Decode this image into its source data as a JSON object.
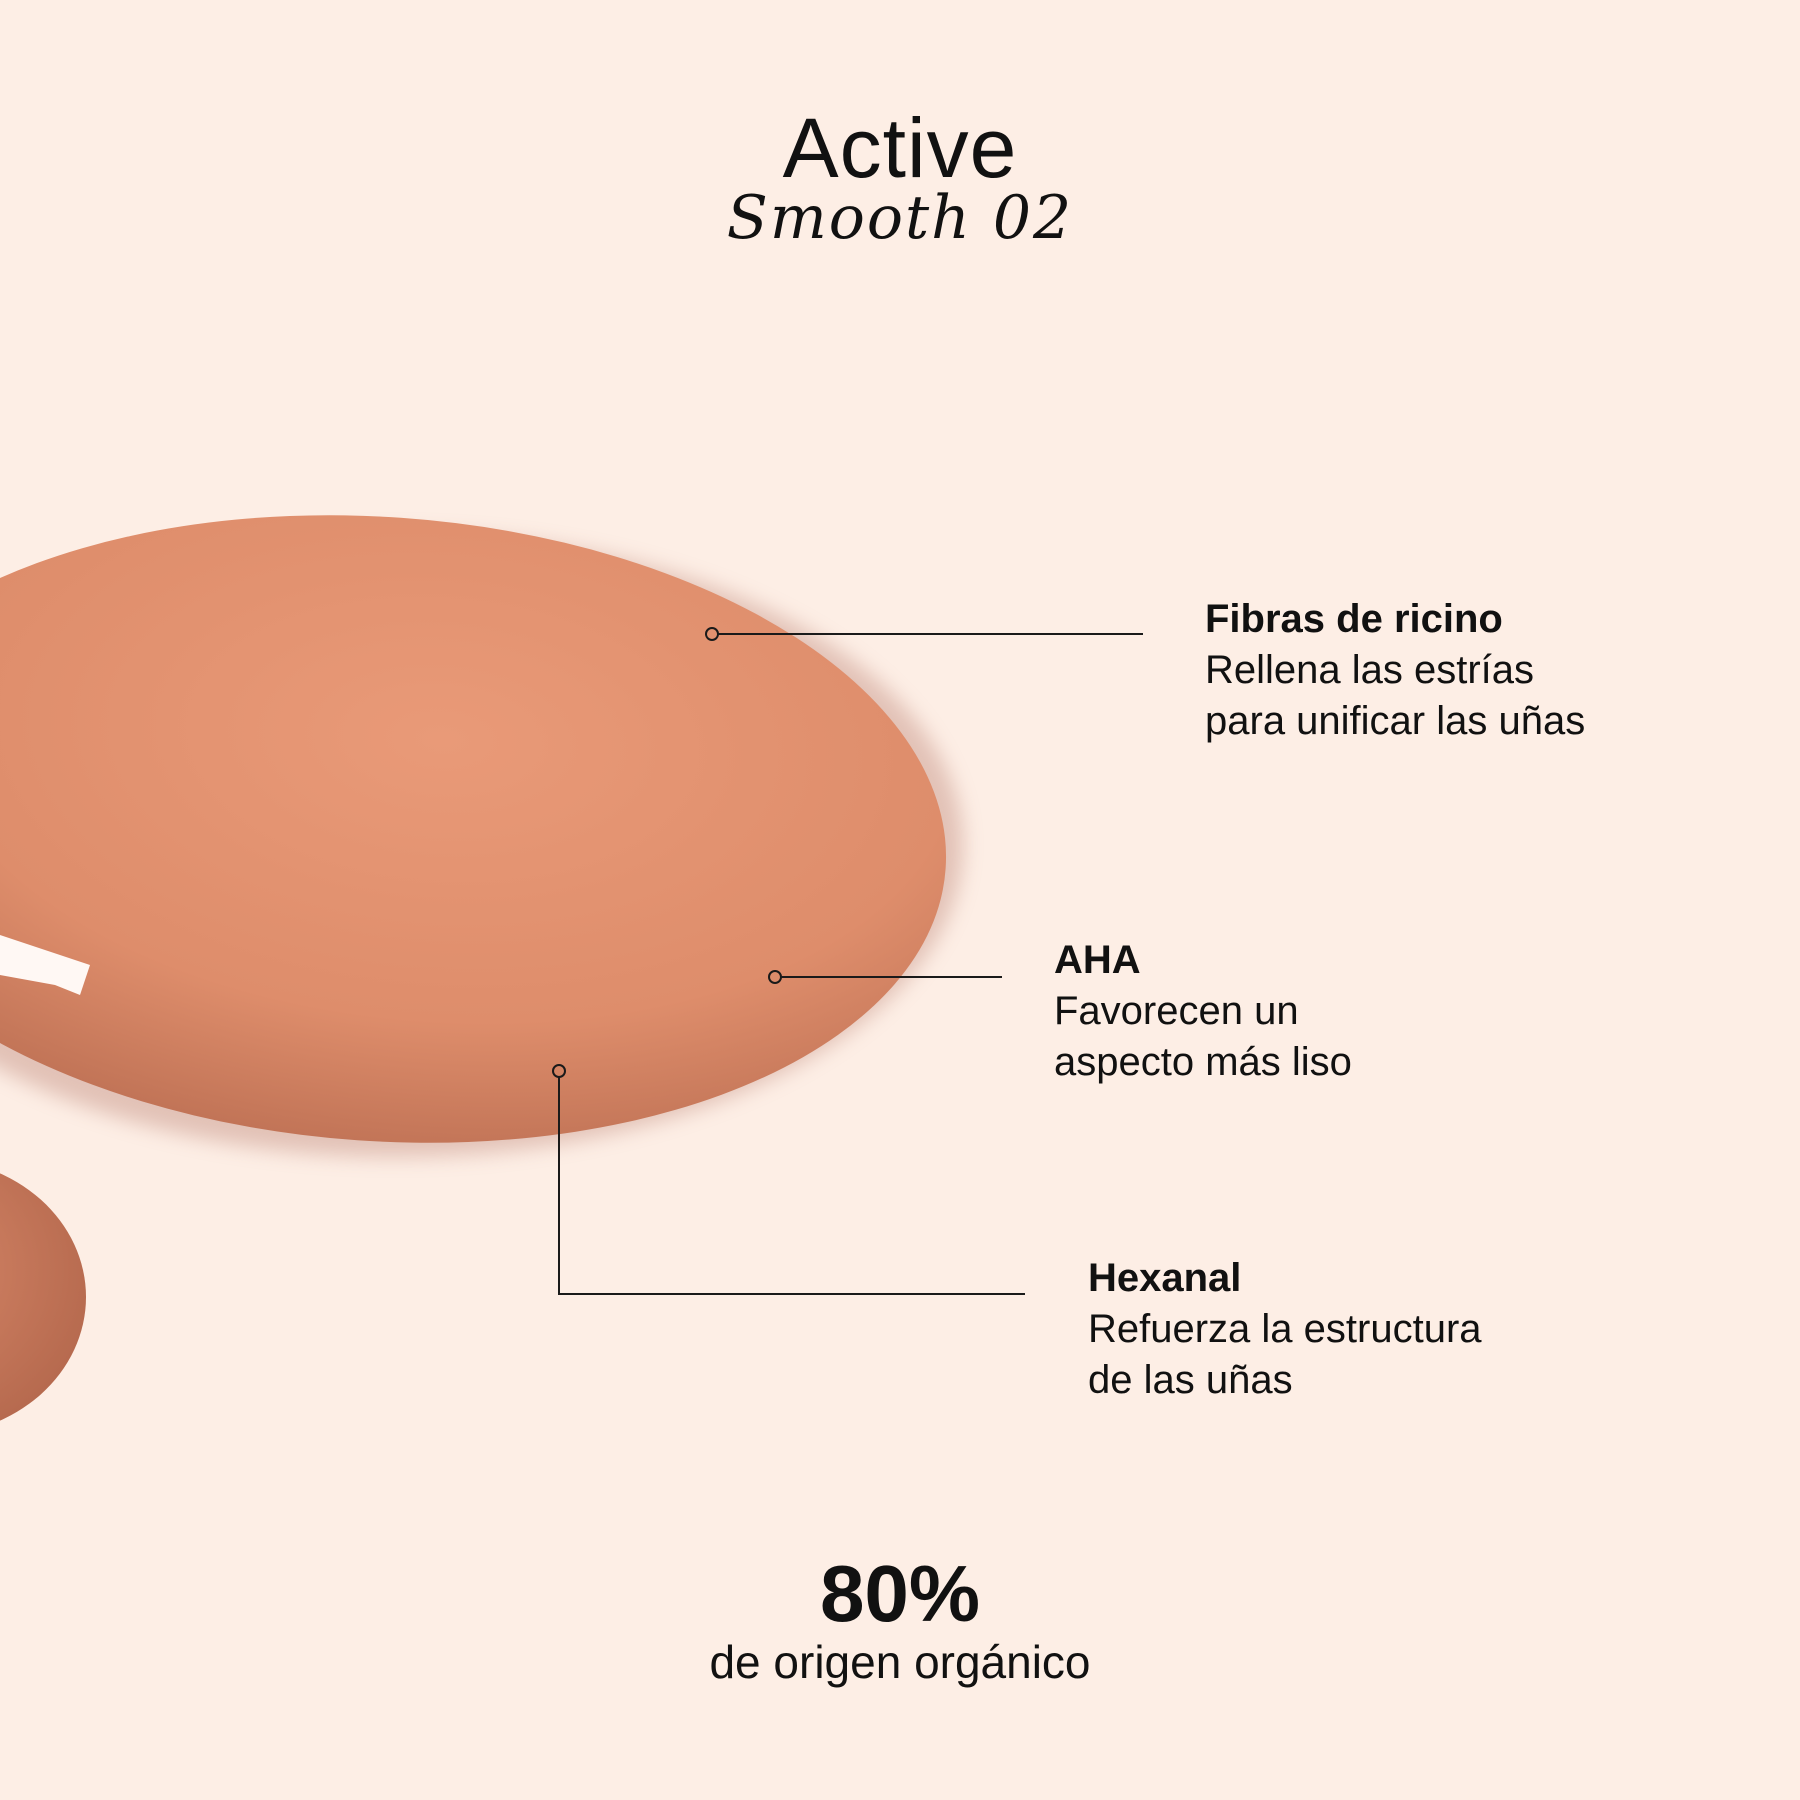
{
  "header": {
    "title": "Active",
    "subtitle": "Smooth 02"
  },
  "colors": {
    "background": "#fdeee5",
    "polish": "#e2906d",
    "polish_shadow": "#b46a4f"
  },
  "callouts": [
    {
      "heading": "Fibras de ricino",
      "lines": [
        "Rellena las estrías",
        "para unificar las uñas"
      ]
    },
    {
      "heading": "AHA",
      "lines": [
        "Favorecen un",
        "aspecto más liso"
      ]
    },
    {
      "heading": "Hexanal",
      "lines": [
        "Refuerza la estructura",
        "de las uñas"
      ]
    }
  ],
  "footer": {
    "stat": "80%",
    "stat_label": "de origen orgánico"
  }
}
